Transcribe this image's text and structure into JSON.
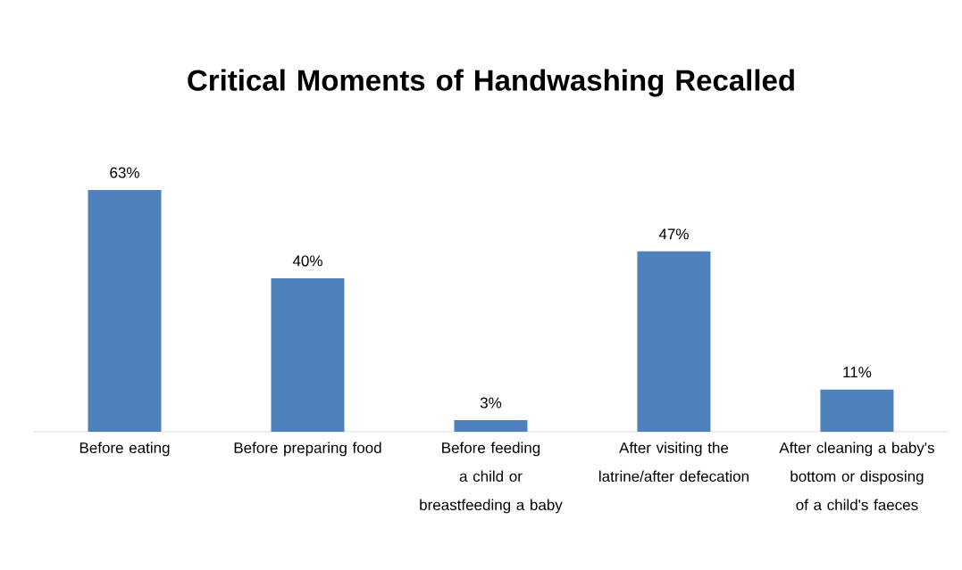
{
  "chart_data": {
    "type": "bar",
    "title": "Critical Moments of Handwashing Recalled",
    "categories": [
      "Before eating",
      "Before preparing food",
      "Before feeding a child or breastfeeding a baby",
      "After visiting the latrine/after defecation",
      "After cleaning a baby's bottom or disposing of a child's faeces"
    ],
    "values": [
      63,
      40,
      3,
      47,
      11
    ],
    "value_labels": [
      "63%",
      "40%",
      "3%",
      "47%",
      "11%"
    ],
    "color": "#4f81bd"
  }
}
